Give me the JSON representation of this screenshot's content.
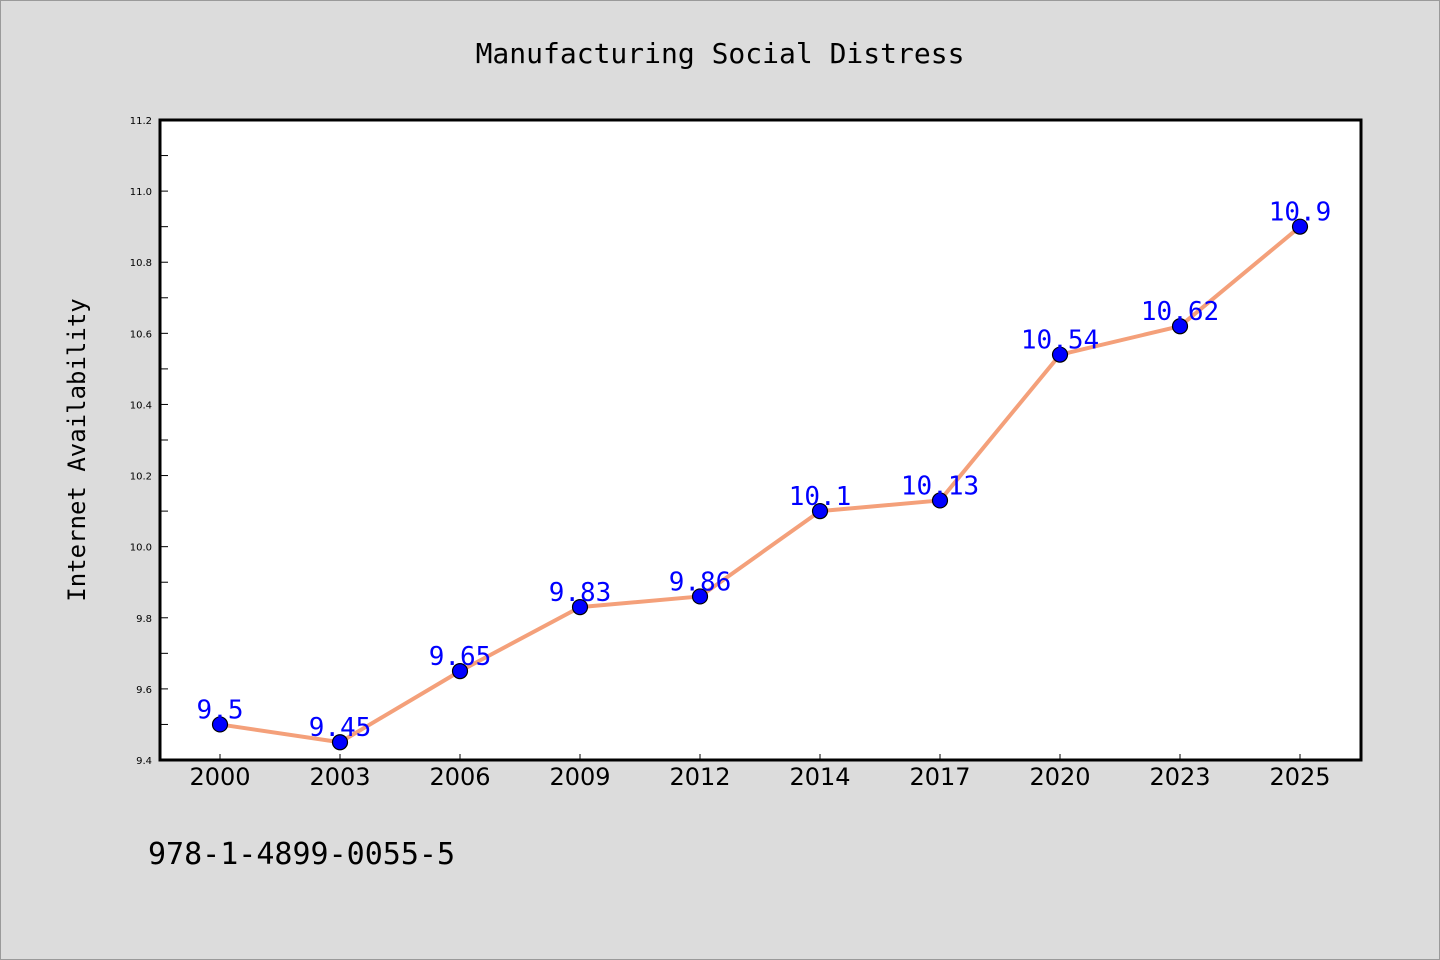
{
  "chart_data": {
    "type": "line",
    "title": "Manufacturing Social Distress",
    "xlabel": "",
    "ylabel": "Internet Availability",
    "categories": [
      "2000",
      "2003",
      "2006",
      "2009",
      "2012",
      "2014",
      "2017",
      "2020",
      "2023",
      "2025"
    ],
    "series": [
      {
        "values": [
          9.5,
          9.45,
          9.65,
          9.83,
          9.86,
          10.1,
          10.13,
          10.54,
          10.62,
          10.9
        ]
      }
    ],
    "data_labels": [
      "9.5",
      "9.45",
      "9.65",
      "9.83",
      "9.86",
      "10.1",
      "10.13",
      "10.54",
      "10.62",
      "10.9"
    ],
    "ylim": [
      9.4,
      11.2
    ],
    "y_ticks": [
      "9.4",
      "9.6",
      "9.8",
      "10.0",
      "10.2",
      "10.4",
      "10.6",
      "10.8",
      "11.0",
      "11.2"
    ],
    "grid": false,
    "legend": "none",
    "colors": {
      "line": "#f4a07a",
      "marker": "#0000ff",
      "data_label": "#0000ff",
      "background": "#dcdcdc",
      "plot_background": "#ffffff"
    }
  },
  "footer": {
    "text": "978-1-4899-0055-5"
  }
}
